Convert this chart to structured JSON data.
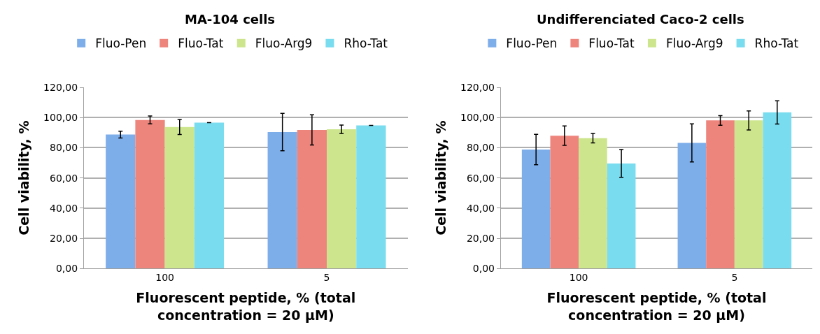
{
  "chart_data": [
    {
      "type": "bar",
      "title": "MA-104 cells",
      "xlabel": "Fluorescent peptide, % (total\nconcentration = 20 µM)",
      "ylabel": "Cell viability, %",
      "categories": [
        "100",
        "5"
      ],
      "series": [
        {
          "name": "Fluo-Pen",
          "color": "#7eaeea",
          "values": [
            88.7,
            90.4
          ],
          "errors": [
            2.3,
            12.4
          ]
        },
        {
          "name": "Fluo-Tat",
          "color": "#ee857c",
          "values": [
            98.4,
            91.8
          ],
          "errors": [
            2.6,
            10.0
          ]
        },
        {
          "name": "Fluo-Arg9",
          "color": "#cde68e",
          "values": [
            93.7,
            92.2
          ],
          "errors": [
            5.0,
            2.8
          ]
        },
        {
          "name": "Rho-Tat",
          "color": "#79dcef",
          "values": [
            96.6,
            94.8
          ],
          "errors": [
            null,
            null
          ]
        }
      ],
      "ylim": [
        0,
        120
      ],
      "yticks": [
        {
          "value": 0,
          "label": "0,00"
        },
        {
          "value": 20,
          "label": "20,00"
        },
        {
          "value": 40,
          "label": "40,00"
        },
        {
          "value": 60,
          "label": "60,00"
        },
        {
          "value": 80,
          "label": "80,00"
        },
        {
          "value": 100,
          "label": "100,00"
        },
        {
          "value": 120,
          "label": "120,00"
        }
      ],
      "grid": "y",
      "legend": "top"
    },
    {
      "type": "bar",
      "title": "Undifferenciated Caco-2 cells",
      "xlabel": "Fluorescent peptide, % (total\nconcentration = 20 µM)",
      "ylabel": "Cell viability, %",
      "categories": [
        "100",
        "5"
      ],
      "series": [
        {
          "name": "Fluo-Pen",
          "color": "#7eaeea",
          "values": [
            78.8,
            83.2
          ],
          "errors": [
            10.1,
            12.6
          ]
        },
        {
          "name": "Fluo-Tat",
          "color": "#ee857c",
          "values": [
            88.0,
            98.1
          ],
          "errors": [
            6.4,
            3.2
          ]
        },
        {
          "name": "Fluo-Arg9",
          "color": "#cde68e",
          "values": [
            86.3,
            98.1
          ],
          "errors": [
            3.1,
            6.3
          ]
        },
        {
          "name": "Rho-Tat",
          "color": "#79dcef",
          "values": [
            69.6,
            103.4
          ],
          "errors": [
            9.2,
            7.7
          ]
        }
      ],
      "ylim": [
        0,
        120
      ],
      "yticks": [
        {
          "value": 0,
          "label": "0,00"
        },
        {
          "value": 20,
          "label": "20,00"
        },
        {
          "value": 40,
          "label": "40,00"
        },
        {
          "value": 60,
          "label": "60,00"
        },
        {
          "value": 80,
          "label": "80,00"
        },
        {
          "value": 100,
          "label": "100,00"
        },
        {
          "value": 120,
          "label": "120,00"
        }
      ],
      "grid": "y",
      "legend": "top"
    }
  ]
}
